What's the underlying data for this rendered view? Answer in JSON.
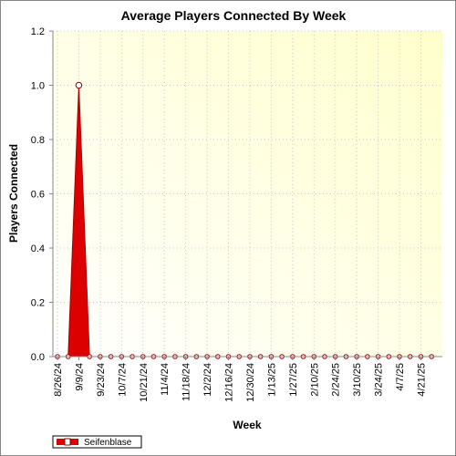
{
  "chart_data": {
    "type": "area",
    "title": "Average Players Connected By Week",
    "xlabel": "Week",
    "ylabel": "Players Connected",
    "ylim": [
      0,
      1.2
    ],
    "yticks": [
      "0.0",
      "0.2",
      "0.4",
      "0.6",
      "0.8",
      "1.0",
      "1.2"
    ],
    "x_tick_labels": [
      "8/26/24",
      "9/9/24",
      "9/23/24",
      "10/7/24",
      "10/21/24",
      "11/4/24",
      "11/18/24",
      "12/2/24",
      "12/16/24",
      "12/30/24",
      "1/13/25",
      "1/27/25",
      "2/10/25",
      "2/24/25",
      "3/10/25",
      "3/24/25",
      "4/7/25",
      "4/21/25"
    ],
    "grid": true,
    "legend_position": "bottom-left",
    "series": [
      {
        "name": "Seifenblase",
        "color": "#dd0000",
        "x": [
          "8/26/24",
          "9/2/24",
          "9/9/24",
          "9/16/24",
          "9/23/24",
          "9/30/24",
          "10/7/24",
          "10/14/24",
          "10/21/24",
          "10/28/24",
          "11/4/24",
          "11/11/24",
          "11/18/24",
          "11/25/24",
          "12/2/24",
          "12/9/24",
          "12/16/24",
          "12/23/24",
          "12/30/24",
          "1/6/25",
          "1/13/25",
          "1/20/25",
          "1/27/25",
          "2/3/25",
          "2/10/25",
          "2/17/25",
          "2/24/25",
          "3/3/25",
          "3/10/25",
          "3/17/25",
          "3/24/25",
          "3/31/25",
          "4/7/25",
          "4/14/25",
          "4/21/25",
          "4/28/25"
        ],
        "values": [
          0,
          0,
          1.0,
          0,
          0,
          0,
          0,
          0,
          0,
          0,
          0,
          0,
          0,
          0,
          0,
          0,
          0,
          0,
          0,
          0,
          0,
          0,
          0,
          0,
          0,
          0,
          0,
          0,
          0,
          0,
          0,
          0,
          0,
          0,
          0,
          0
        ]
      }
    ]
  }
}
